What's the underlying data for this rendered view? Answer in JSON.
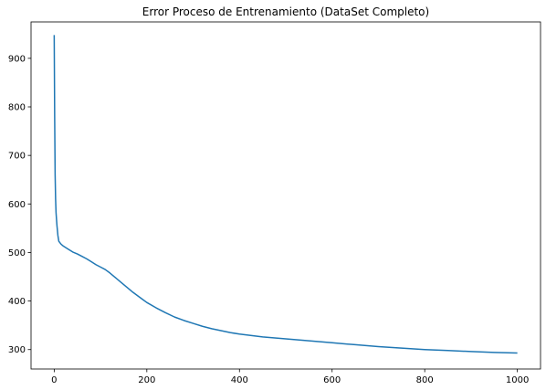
{
  "chart_data": {
    "type": "line",
    "title": "Error Proceso de Entrenamiento (DataSet Completo)",
    "xlabel": "",
    "ylabel": "",
    "xlim": [
      -50,
      1050
    ],
    "ylim": [
      260,
      975
    ],
    "xticks": [
      0,
      200,
      400,
      600,
      800,
      1000
    ],
    "yticks": [
      300,
      400,
      500,
      600,
      700,
      800,
      900
    ],
    "grid": false,
    "series": [
      {
        "color": "#1f77b4",
        "x": [
          0,
          1,
          2,
          3,
          4,
          5,
          6,
          8,
          10,
          15,
          20,
          30,
          40,
          50,
          60,
          70,
          80,
          90,
          100,
          110,
          120,
          130,
          140,
          150,
          160,
          170,
          180,
          190,
          200,
          220,
          240,
          260,
          280,
          300,
          320,
          340,
          360,
          380,
          400,
          450,
          500,
          550,
          600,
          650,
          700,
          750,
          800,
          850,
          900,
          950,
          1000
        ],
        "y": [
          948,
          780,
          660,
          610,
          582,
          568,
          555,
          535,
          523,
          517,
          513,
          507,
          501,
          497,
          492,
          487,
          481,
          475,
          470,
          465,
          458,
          450,
          442,
          434,
          426,
          418,
          411,
          404,
          397,
          386,
          376,
          367,
          360,
          354,
          348,
          343,
          339,
          335,
          332,
          326,
          322,
          318,
          314,
          310,
          306,
          303,
          300,
          298,
          296,
          294,
          293
        ]
      }
    ]
  }
}
